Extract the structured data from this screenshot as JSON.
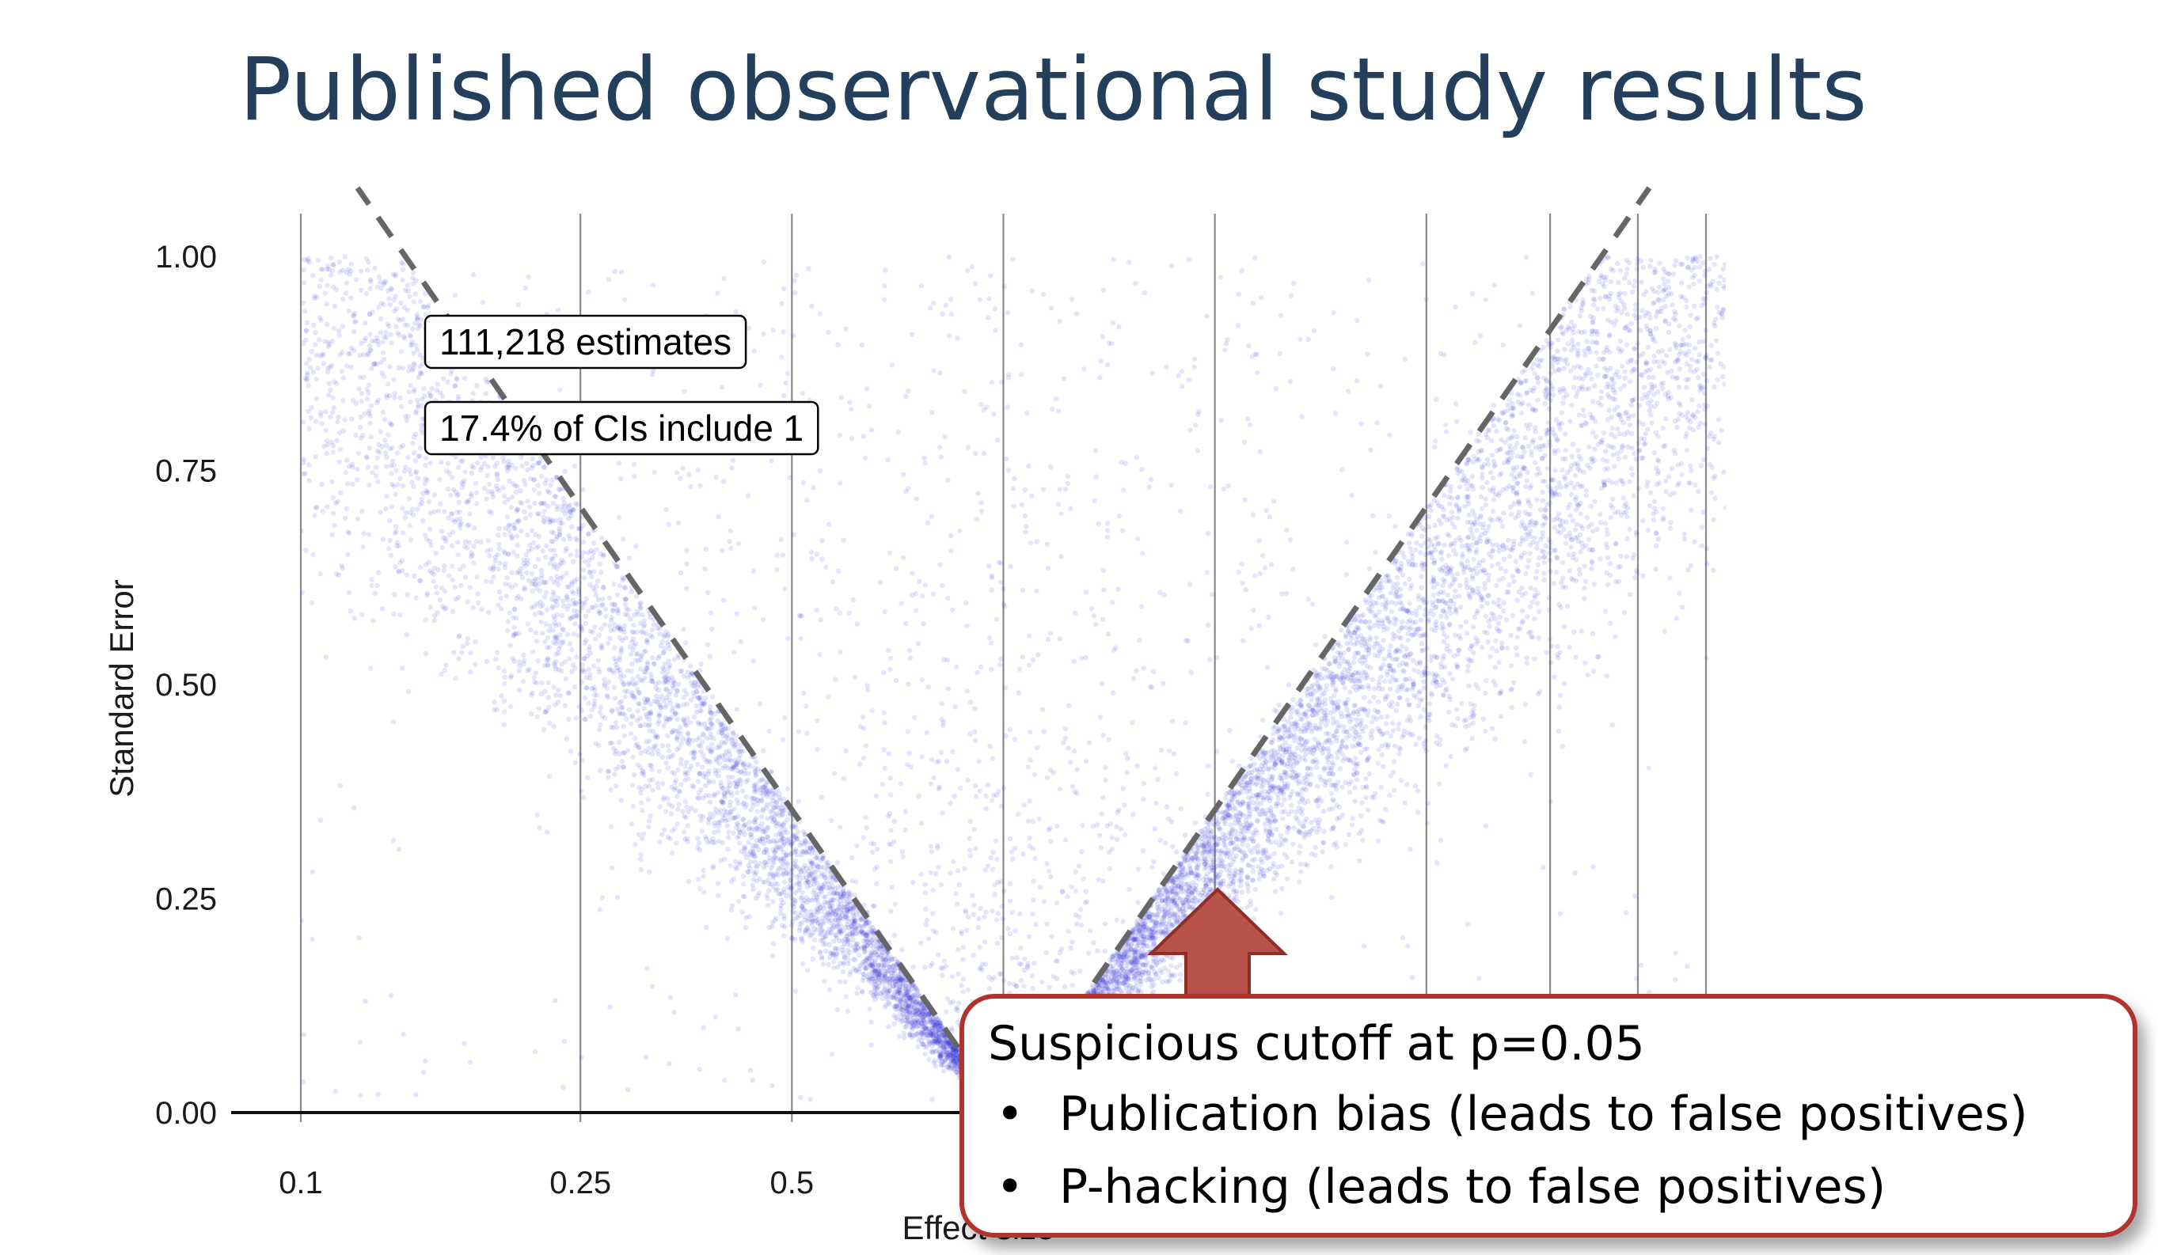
{
  "slide": {
    "title": "Published observational study results"
  },
  "chart_data": {
    "type": "scatter",
    "title": "",
    "xlabel": "Effect size",
    "ylabel": "Standard Error",
    "x_scale": "log",
    "xlim": [
      0.085,
      20
    ],
    "ylim": [
      0,
      1.05
    ],
    "x_ticks": [
      {
        "value": 0.1,
        "label": "0.1"
      },
      {
        "value": 0.25,
        "label": "0.25"
      },
      {
        "value": 0.5,
        "label": "0.5"
      }
    ],
    "y_ticks": [
      {
        "value": 0.0,
        "label": "0.00"
      },
      {
        "value": 0.25,
        "label": "0.25"
      },
      {
        "value": 0.5,
        "label": "0.50"
      },
      {
        "value": 0.75,
        "label": "0.75"
      },
      {
        "value": 1.0,
        "label": "1.00"
      }
    ],
    "vertical_reference_lines": [
      0.1,
      0.25,
      0.5,
      1,
      2,
      4,
      6,
      8,
      10
    ],
    "horizontal_reference_line": 0,
    "significance_boundary": "dashed lines where |log(effect)| / SE = 1.96",
    "annotations": [
      {
        "text": "111,218 estimates",
        "x": 0.11,
        "y": 0.9
      },
      {
        "text": "17.4% of CIs include 1",
        "x": 0.11,
        "y": 0.8
      }
    ],
    "total_estimates": 111218,
    "percent_ci_include_1": 17.4,
    "point_color": "#3030d8",
    "dashed_line_color": "#666666"
  },
  "callout": {
    "title": "Suspicious cutoff at p=0.05",
    "bullet_symbol": "•",
    "bullets": [
      "Publication bias (leads to false positives)",
      "P-hacking (leads to false positives)"
    ],
    "border_color": "#b0332e",
    "arrow_color": "#b8524a"
  }
}
